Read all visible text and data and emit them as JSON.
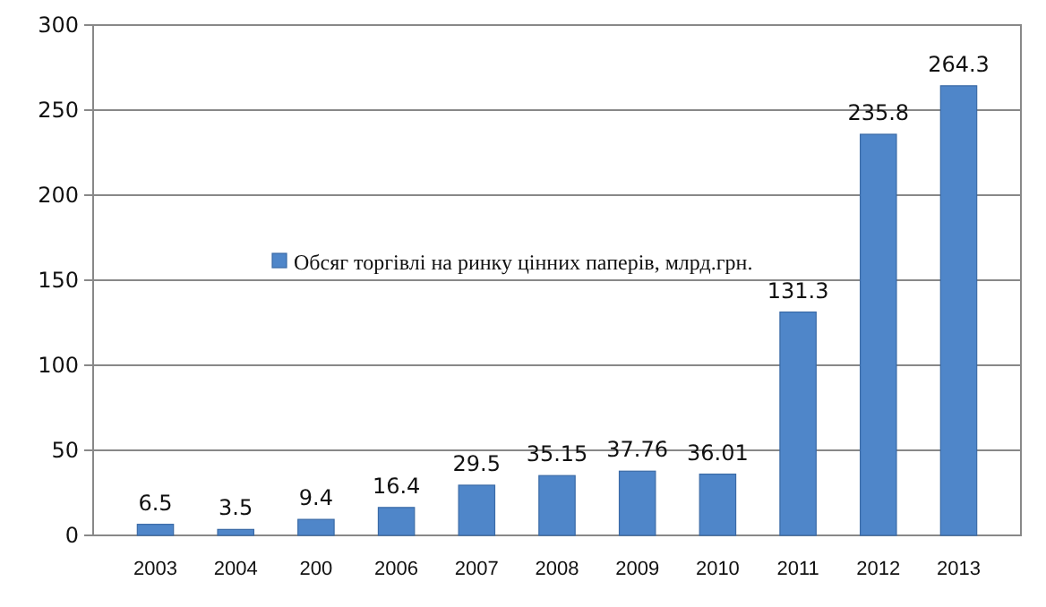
{
  "chart_data": {
    "type": "bar",
    "categories": [
      "2003",
      "2004",
      "200",
      "2006",
      "2007",
      "2008",
      "2009",
      "2010",
      "2011",
      "2012",
      "2013"
    ],
    "series": [
      {
        "name": "Обсяг торгівлі на ринку цінних паперів, млрд.грн.",
        "color": "#4f86c9",
        "values": [
          6.5,
          3.5,
          9.4,
          16.4,
          29.5,
          35.15,
          37.76,
          36.01,
          131.3,
          235.8,
          264.3
        ]
      }
    ],
    "ylim": [
      0,
      300
    ],
    "yticks": [
      0,
      50,
      100,
      150,
      200,
      250,
      300
    ],
    "grid": true,
    "legend": "left",
    "data_labels": true
  }
}
